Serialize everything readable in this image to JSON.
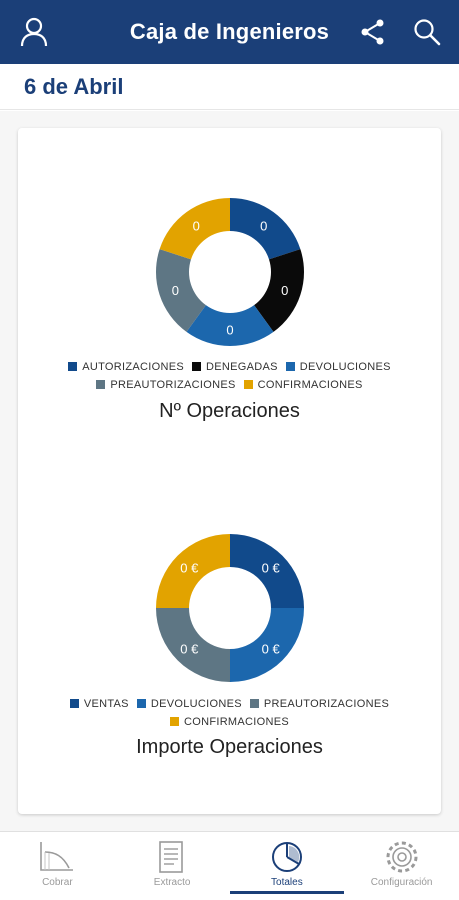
{
  "appbar": {
    "title": "Caja de Ingenieros",
    "icons": [
      "user-icon",
      "share-icon",
      "search-icon"
    ]
  },
  "date": "6 de Abril",
  "colors": {
    "primary": "#1b3f78",
    "autorizaciones": "#114a8b",
    "denegadas": "#0a0a0a",
    "devoluciones": "#1c67ad",
    "preautorizaciones": "#5e7684",
    "confirmaciones": "#e2a300"
  },
  "chart_data": [
    {
      "type": "pie",
      "title": "Nº Operaciones",
      "categories": [
        "AUTORIZACIONES",
        "DENEGADAS",
        "DEVOLUCIONES",
        "PREAUTORIZACIONES",
        "CONFIRMACIONES"
      ],
      "values": [
        0,
        0,
        0,
        0,
        0
      ],
      "labels": [
        "0",
        "0",
        "0",
        "0",
        "0"
      ],
      "colors": [
        "#114a8b",
        "#0a0a0a",
        "#1c67ad",
        "#5e7684",
        "#e2a300"
      ],
      "legend_position": "bottom"
    },
    {
      "type": "pie",
      "title": "Importe Operaciones",
      "categories": [
        "VENTAS",
        "DEVOLUCIONES",
        "PREAUTORIZACIONES",
        "CONFIRMACIONES"
      ],
      "values": [
        0,
        0,
        0,
        0
      ],
      "labels": [
        "0 €",
        "0 €",
        "0 €",
        "0 €"
      ],
      "colors": [
        "#114a8b",
        "#1c67ad",
        "#5e7684",
        "#e2a300"
      ],
      "legend_position": "bottom"
    }
  ],
  "bottom_nav": [
    {
      "label": "Cobrar",
      "icon": "receipt-curve-icon",
      "active": false
    },
    {
      "label": "Extracto",
      "icon": "statement-icon",
      "active": false
    },
    {
      "label": "Totales",
      "icon": "pie-chart-icon",
      "active": true
    },
    {
      "label": "Configuración",
      "icon": "gear-icon",
      "active": false
    }
  ]
}
